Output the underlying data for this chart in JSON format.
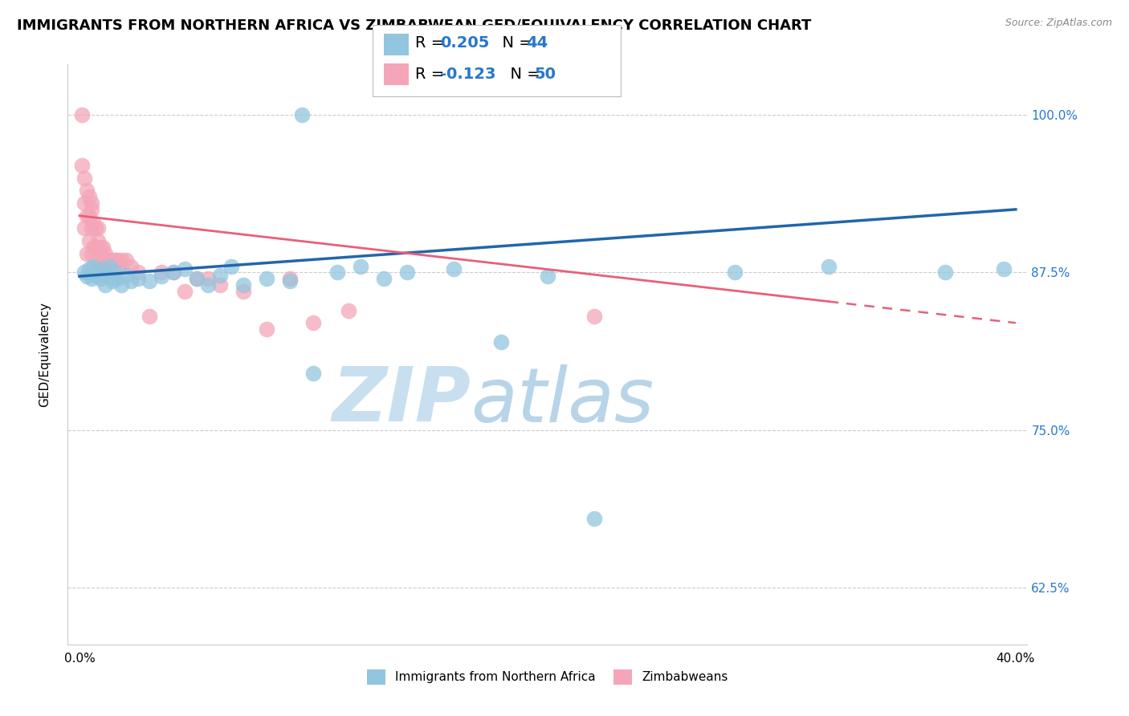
{
  "title": "IMMIGRANTS FROM NORTHERN AFRICA VS ZIMBABWEAN GED/EQUIVALENCY CORRELATION CHART",
  "source": "Source: ZipAtlas.com",
  "ylabel": "GED/Equivalency",
  "legend_r1": "R = 0.205",
  "legend_n1": "N = 44",
  "legend_r2": "R = -0.123",
  "legend_n2": "N = 50",
  "legend_label1": "Immigrants from Northern Africa",
  "legend_label2": "Zimbabweans",
  "blue_color": "#92c5de",
  "pink_color": "#f4a6b8",
  "blue_line_color": "#2166ac",
  "pink_line_color": "#e8607a",
  "watermark_zip": "ZIP",
  "watermark_atlas": "atlas",
  "watermark_color_zip": "#c8dff0",
  "watermark_color_atlas": "#b8d4e8",
  "blue_points_x": [
    0.2,
    0.3,
    0.4,
    0.5,
    0.6,
    0.7,
    0.8,
    0.9,
    1.0,
    1.1,
    1.2,
    1.3,
    1.4,
    1.5,
    1.6,
    1.8,
    2.0,
    2.2,
    2.5,
    3.0,
    3.5,
    4.0,
    4.5,
    5.0,
    5.5,
    6.0,
    6.5,
    7.0,
    8.0,
    9.0,
    10.0,
    11.0,
    12.0,
    13.0,
    14.0,
    16.0,
    18.0,
    20.0,
    22.0,
    28.0,
    32.0,
    37.0,
    39.5,
    9.5
  ],
  "blue_points_y": [
    87.5,
    87.2,
    87.8,
    87.0,
    88.0,
    87.3,
    87.5,
    87.0,
    87.8,
    86.5,
    87.2,
    88.0,
    86.8,
    87.5,
    87.0,
    86.5,
    87.3,
    86.8,
    87.0,
    86.8,
    87.2,
    87.5,
    87.8,
    87.0,
    86.5,
    87.3,
    88.0,
    86.5,
    87.0,
    86.8,
    79.5,
    87.5,
    88.0,
    87.0,
    87.5,
    87.8,
    82.0,
    87.2,
    68.0,
    87.5,
    88.0,
    87.5,
    87.8,
    100.0
  ],
  "pink_points_x": [
    0.1,
    0.1,
    0.2,
    0.2,
    0.2,
    0.3,
    0.3,
    0.3,
    0.4,
    0.4,
    0.4,
    0.5,
    0.5,
    0.5,
    0.5,
    0.6,
    0.6,
    0.7,
    0.7,
    0.7,
    0.8,
    0.8,
    0.9,
    0.9,
    1.0,
    1.0,
    1.1,
    1.2,
    1.3,
    1.4,
    1.5,
    1.6,
    1.7,
    1.8,
    2.0,
    2.2,
    2.5,
    3.0,
    3.5,
    4.0,
    4.5,
    5.0,
    5.5,
    6.0,
    7.0,
    8.0,
    9.0,
    10.0,
    11.5,
    22.0
  ],
  "pink_points_y": [
    100.0,
    96.0,
    93.0,
    95.0,
    91.0,
    94.0,
    92.0,
    89.0,
    93.5,
    92.0,
    90.0,
    93.0,
    91.0,
    89.0,
    92.5,
    91.5,
    89.5,
    91.0,
    89.5,
    88.5,
    91.0,
    90.0,
    89.5,
    88.5,
    89.5,
    88.0,
    89.0,
    88.5,
    88.5,
    88.5,
    88.5,
    88.5,
    88.0,
    88.5,
    88.5,
    88.0,
    87.5,
    84.0,
    87.5,
    87.5,
    86.0,
    87.0,
    87.0,
    86.5,
    86.0,
    83.0,
    87.0,
    83.5,
    84.5,
    84.0
  ],
  "xlim": [
    0.0,
    40.0
  ],
  "ylim": [
    58.0,
    104.0
  ],
  "x_ticks": [
    0.0,
    40.0
  ],
  "x_tick_labels": [
    "0.0%",
    "40.0%"
  ],
  "y_ticks": [
    62.5,
    75.0,
    87.5,
    100.0
  ],
  "y_tick_labels": [
    "62.5%",
    "75.0%",
    "87.5%",
    "100.0%"
  ]
}
